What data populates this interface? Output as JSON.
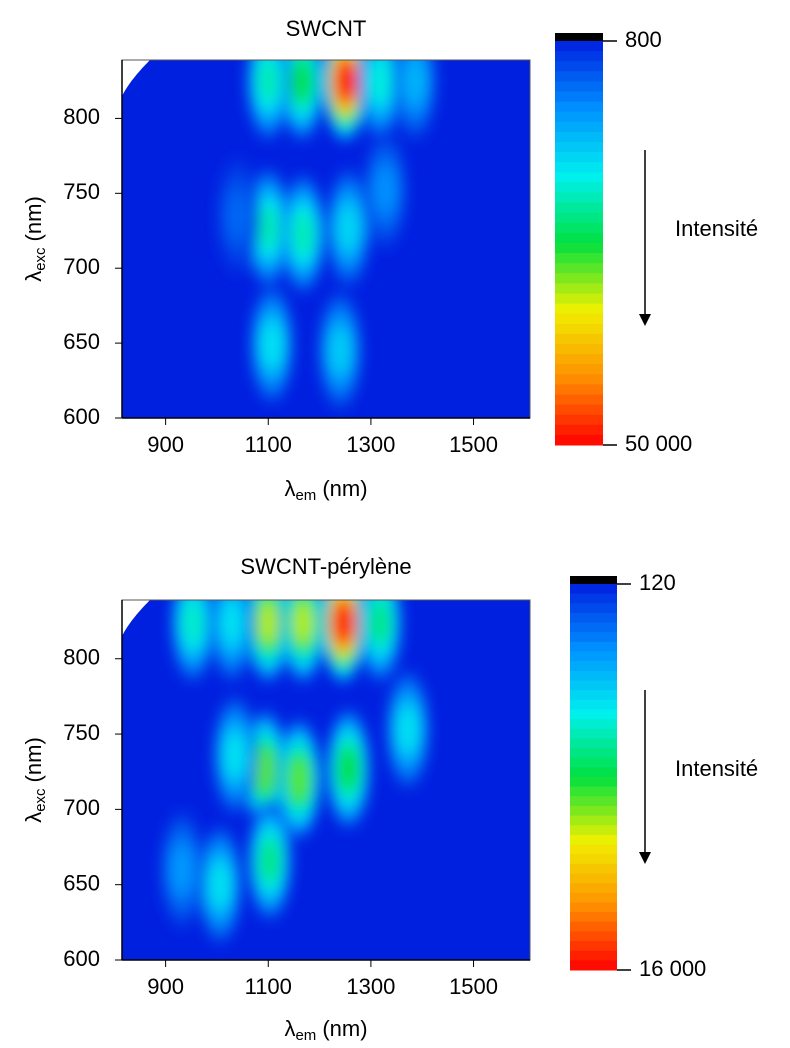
{
  "chart_data": [
    {
      "type": "heatmap",
      "title": "SWCNT",
      "xlabel": {
        "symbol": "λ",
        "subscript": "em",
        "unit": "(nm)"
      },
      "ylabel": {
        "symbol": "λ",
        "subscript": "exc",
        "unit": "(nm)"
      },
      "xlim": [
        815,
        1610
      ],
      "xticks": [
        900,
        1100,
        1300,
        1500
      ],
      "ylim": [
        600,
        839
      ],
      "yticks": [
        600,
        650,
        700,
        750,
        800
      ],
      "peaks": {
        "x": [
          1250,
          1166,
          1100,
          1318,
          1386,
          1100,
          1168,
          1256,
          1107,
          1240,
          1328,
          1041
        ],
        "y": [
          825,
          825,
          825,
          825,
          825,
          727,
          723,
          727,
          649,
          645,
          752,
          735
        ],
        "values": [
          50000,
          25000,
          20000,
          18000,
          12000,
          20000,
          20000,
          15000,
          16000,
          14000,
          9000,
          6000
        ]
      },
      "colorbar": {
        "lim": [
          800,
          50000
        ],
        "ticks": [
          800,
          {
            "value": 50000,
            "label": "50 000"
          }
        ],
        "colors": [
          "#0020e0",
          "#0090ff",
          "#00f0f0",
          "#00e040",
          "#f0f000",
          "#ff9000",
          "#ff0000"
        ]
      },
      "annotation": "Intensité"
    },
    {
      "type": "heatmap",
      "title": "SWCNT-pérylène",
      "xlabel": {
        "symbol": "λ",
        "subscript": "em",
        "unit": "(nm)"
      },
      "ylabel": {
        "symbol": "λ",
        "subscript": "exc",
        "unit": "(nm)"
      },
      "xlim": [
        815,
        1610
      ],
      "xticks": [
        900,
        1100,
        1300,
        1500
      ],
      "ylim": [
        600,
        839
      ],
      "yticks": [
        600,
        650,
        700,
        750,
        800
      ],
      "peaks": {
        "x": [
          1246,
          1100,
          1168,
          1318,
          953,
          1029,
          1094,
          1160,
          1256,
          1035,
          1103,
          1006,
          1372,
          932
        ],
        "y": [
          824,
          824,
          824,
          824,
          824,
          824,
          726,
          720,
          727,
          736,
          666,
          650,
          753,
          660
        ],
        "values": [
          16000,
          10000,
          10000,
          7000,
          6000,
          5000,
          9000,
          9000,
          8000,
          5000,
          7000,
          5000,
          5000,
          3000
        ]
      },
      "colorbar": {
        "lim": [
          120,
          16000
        ],
        "ticks": [
          120,
          {
            "value": 16000,
            "label": "16 000"
          }
        ],
        "colors": [
          "#0020e0",
          "#0090ff",
          "#00f0f0",
          "#00e040",
          "#f0f000",
          "#ff9000",
          "#ff0000"
        ]
      },
      "annotation": "Intensité"
    }
  ]
}
